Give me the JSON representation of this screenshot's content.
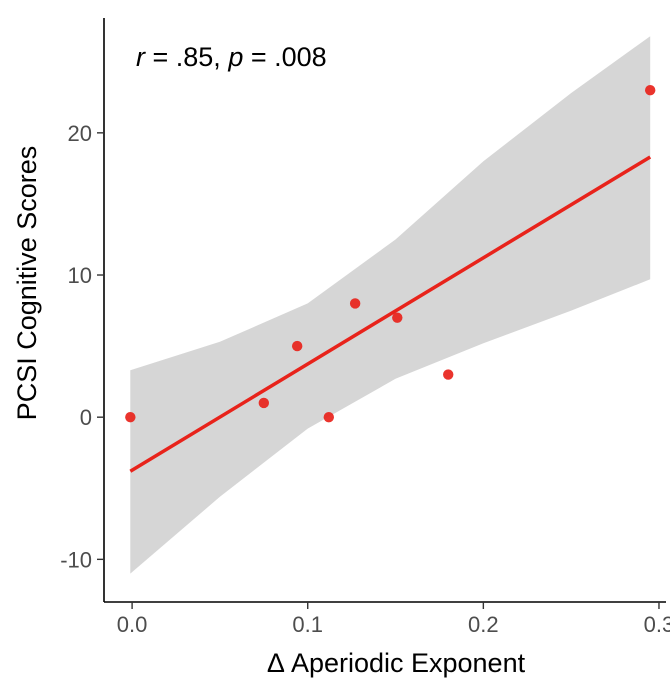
{
  "chart_data": {
    "type": "scatter",
    "xlabel": "Δ Aperiodic Exponent",
    "ylabel": "PCSI Cognitive Scores",
    "xlim": [
      -0.016,
      0.304
    ],
    "ylim": [
      -13,
      28.5
    ],
    "x_ticks": [
      0.0,
      0.1,
      0.2,
      0.3
    ],
    "x_tick_labels": [
      "0.0",
      "0.1",
      "0.2",
      "0.3"
    ],
    "y_ticks": [
      -10,
      0,
      10,
      20
    ],
    "y_tick_labels": [
      "-10",
      "0",
      "10",
      "20"
    ],
    "annotation": {
      "r_symbol": "r",
      "r_text": " = .85, ",
      "p_symbol": "p",
      "p_text": " = .008"
    },
    "points": [
      {
        "x": -0.001,
        "y": 0
      },
      {
        "x": 0.075,
        "y": 1
      },
      {
        "x": 0.094,
        "y": 5
      },
      {
        "x": 0.112,
        "y": 0
      },
      {
        "x": 0.127,
        "y": 8
      },
      {
        "x": 0.151,
        "y": 7
      },
      {
        "x": 0.18,
        "y": 3
      },
      {
        "x": 0.295,
        "y": 23
      }
    ],
    "fit_line": {
      "x": [
        -0.001,
        0.295
      ],
      "y": [
        -3.8,
        18.3
      ]
    },
    "confidence_band": {
      "x": [
        -0.001,
        0.05,
        0.1,
        0.15,
        0.2,
        0.25,
        0.295
      ],
      "upper": [
        3.3,
        5.3,
        8.0,
        12.5,
        18.0,
        22.8,
        26.8
      ],
      "lower": [
        -11.0,
        -5.6,
        -0.8,
        2.7,
        5.2,
        7.5,
        9.7
      ]
    },
    "grid": false,
    "colors": {
      "point": "#e8231b",
      "line": "#e8231b",
      "band": "#d6d6d6",
      "axis": "#000000"
    }
  }
}
